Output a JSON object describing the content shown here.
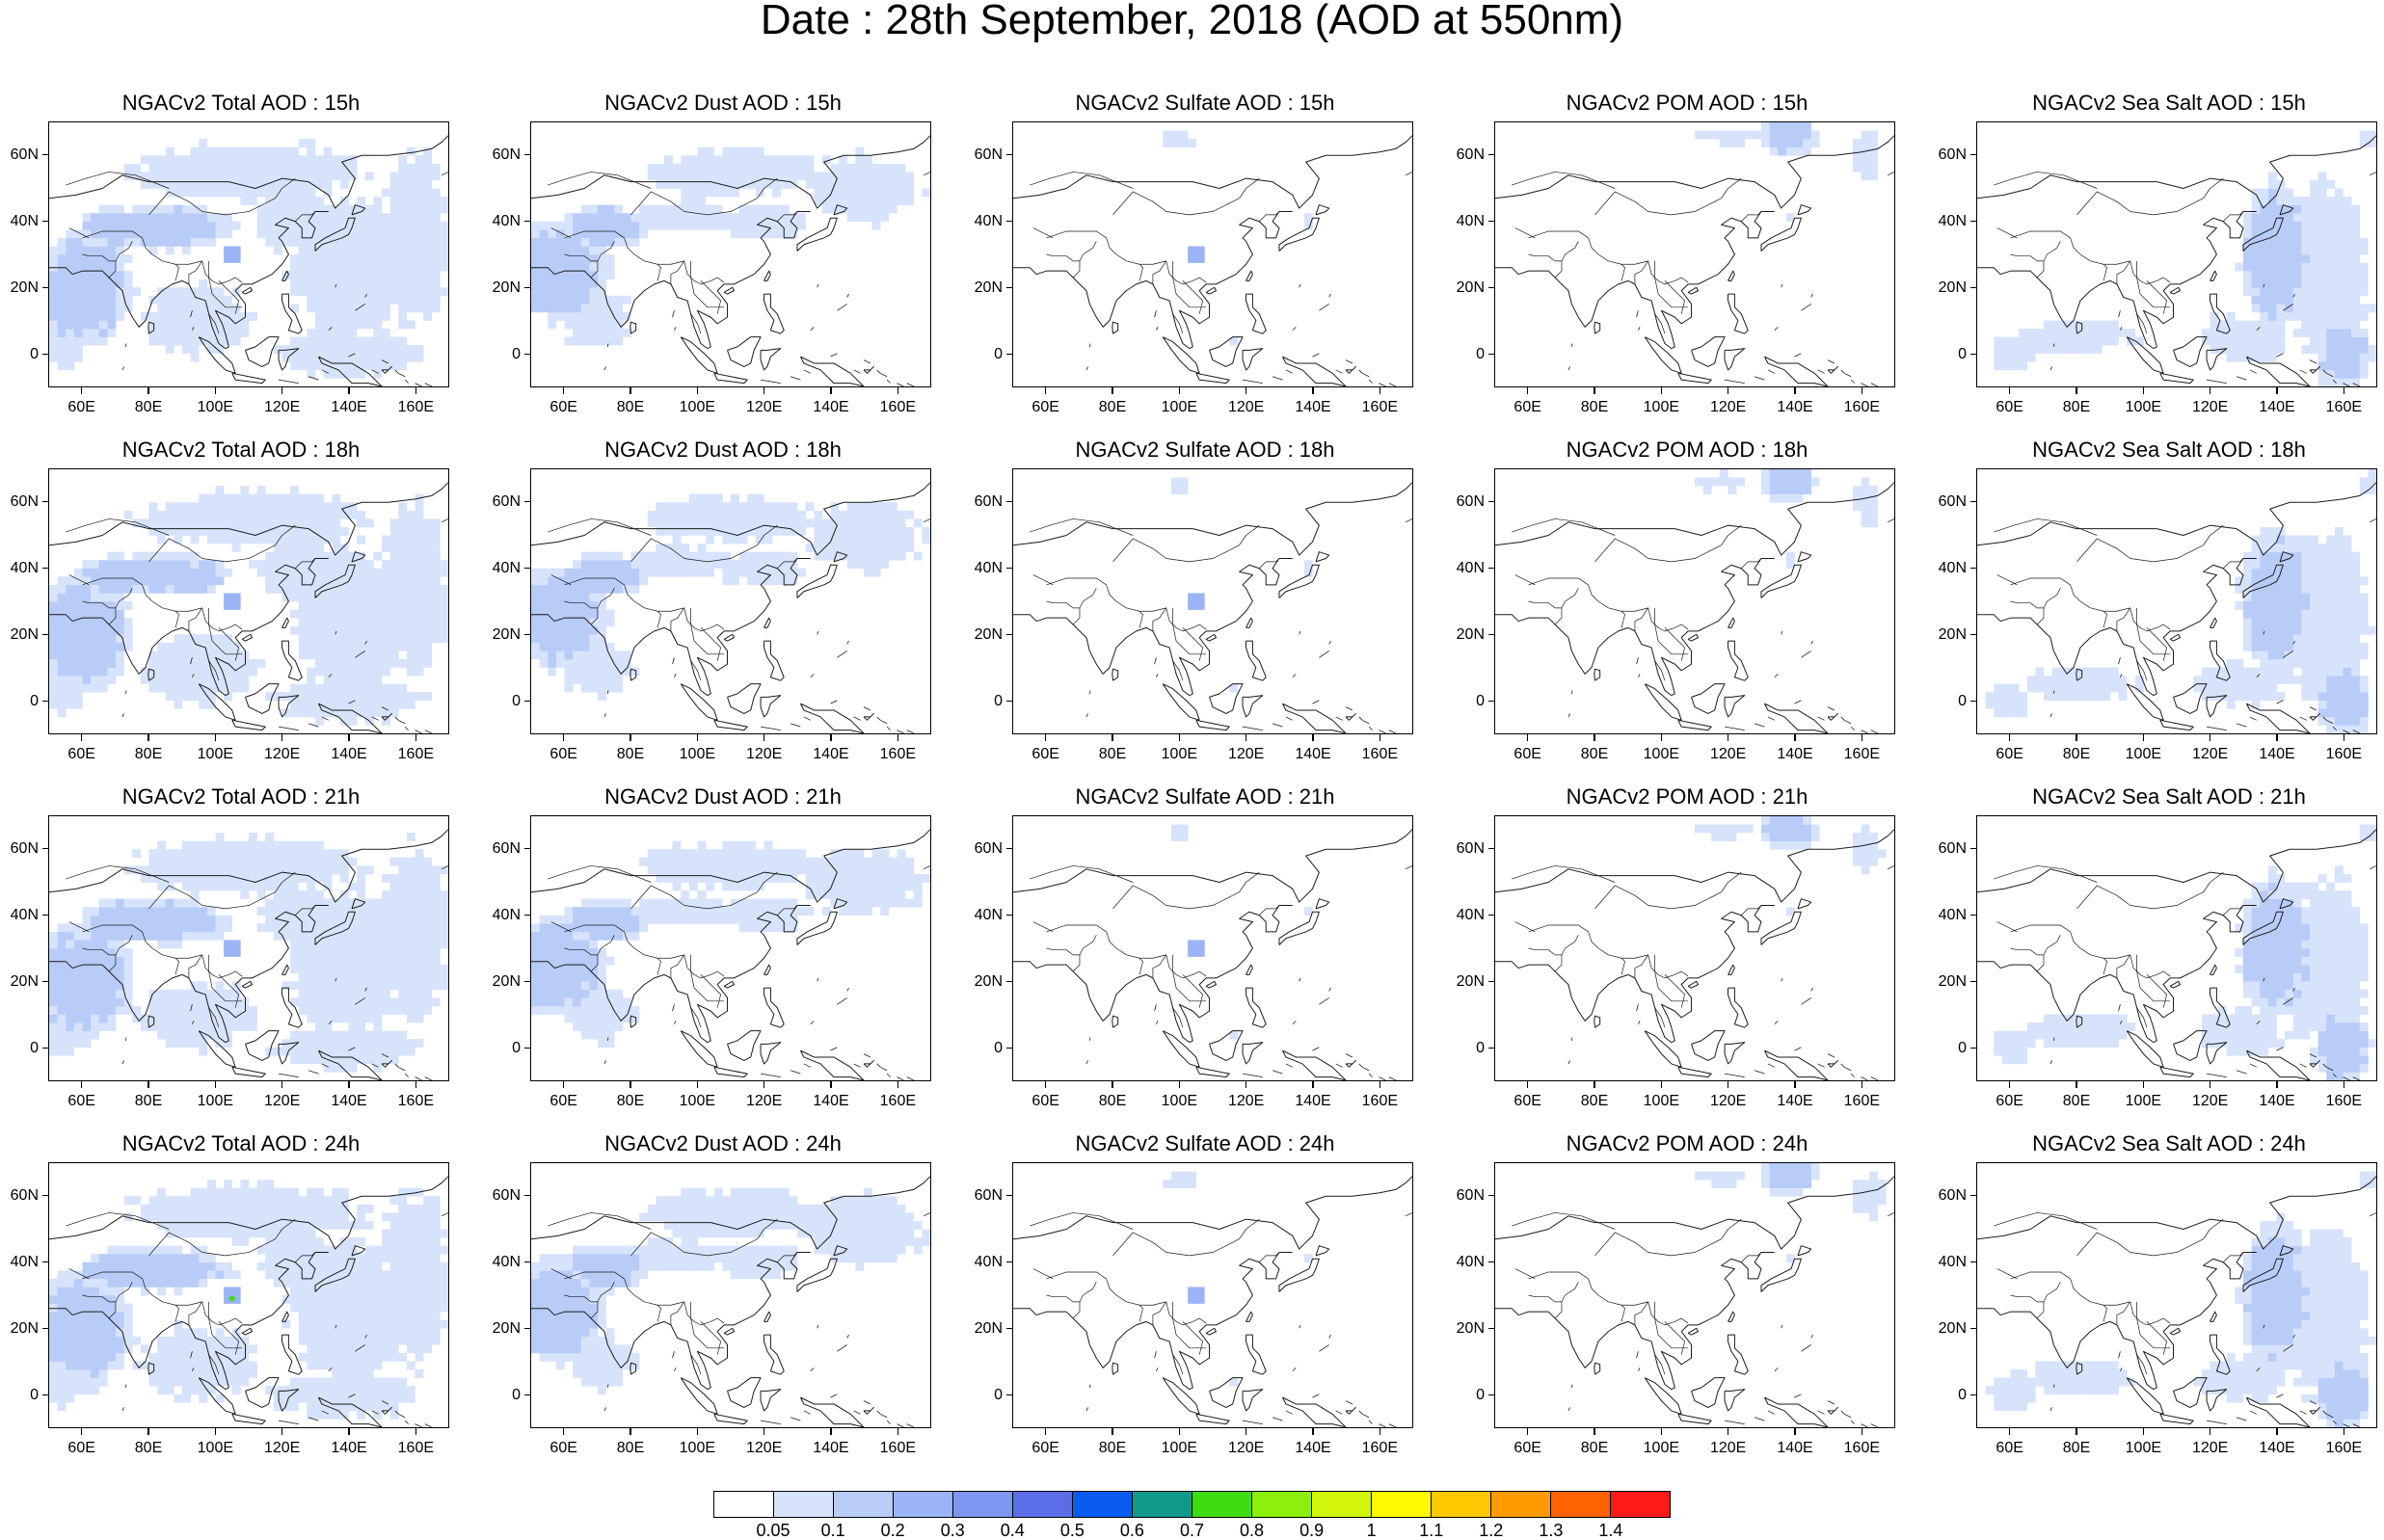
{
  "title": "Date : 28th September, 2018 (AOD at 550nm)",
  "lat_labels": [
    "60N",
    "40N",
    "20N",
    "0"
  ],
  "lon_labels": [
    "60E",
    "80E",
    "100E",
    "120E",
    "140E",
    "160E"
  ],
  "panels": [
    {
      "title": "NGACv2 Total AOD : 15h",
      "species": "total",
      "hour": "15h"
    },
    {
      "title": "NGACv2 Dust AOD : 15h",
      "species": "dust",
      "hour": "15h"
    },
    {
      "title": "NGACv2 Sulfate AOD : 15h",
      "species": "sulfate",
      "hour": "15h"
    },
    {
      "title": "NGACv2 POM AOD : 15h",
      "species": "pom",
      "hour": "15h"
    },
    {
      "title": "NGACv2 Sea Salt AOD : 15h",
      "species": "seasalt",
      "hour": "15h"
    },
    {
      "title": "NGACv2 Total AOD : 18h",
      "species": "total",
      "hour": "18h"
    },
    {
      "title": "NGACv2 Dust AOD : 18h",
      "species": "dust",
      "hour": "18h"
    },
    {
      "title": "NGACv2 Sulfate AOD : 18h",
      "species": "sulfate",
      "hour": "18h"
    },
    {
      "title": "NGACv2 POM AOD : 18h",
      "species": "pom",
      "hour": "18h"
    },
    {
      "title": "NGACv2 Sea Salt AOD : 18h",
      "species": "seasalt",
      "hour": "18h"
    },
    {
      "title": "NGACv2 Total AOD : 21h",
      "species": "total",
      "hour": "21h"
    },
    {
      "title": "NGACv2 Dust AOD : 21h",
      "species": "dust",
      "hour": "21h"
    },
    {
      "title": "NGACv2 Sulfate AOD : 21h",
      "species": "sulfate",
      "hour": "21h"
    },
    {
      "title": "NGACv2 POM AOD : 21h",
      "species": "pom",
      "hour": "21h"
    },
    {
      "title": "NGACv2 Sea Salt AOD : 21h",
      "species": "seasalt",
      "hour": "21h"
    },
    {
      "title": "NGACv2 Total AOD : 24h",
      "species": "total",
      "hour": "24h"
    },
    {
      "title": "NGACv2 Dust AOD : 24h",
      "species": "dust",
      "hour": "24h"
    },
    {
      "title": "NGACv2 Sulfate AOD : 24h",
      "species": "sulfate",
      "hour": "24h"
    },
    {
      "title": "NGACv2 POM AOD : 24h",
      "species": "pom",
      "hour": "24h"
    },
    {
      "title": "NGACv2 Sea Salt  AOD : 24h",
      "species": "seasalt",
      "hour": "24h"
    }
  ],
  "colorbar": {
    "labels": [
      "0.05",
      "0.1",
      "0.2",
      "0.3",
      "0.4",
      "0.5",
      "0.6",
      "0.7",
      "0.8",
      "0.9",
      "1",
      "1.1",
      "1.2",
      "1.3",
      "1.4"
    ],
    "colors": [
      "#ffffff",
      "#d7e3fb",
      "#b8ccf8",
      "#9ab4f5",
      "#7d97f0",
      "#5b6ee8",
      "#0a5cf0",
      "#0f9a8c",
      "#3fdc12",
      "#8cf00c",
      "#d2f50a",
      "#fffa00",
      "#ffc800",
      "#ff9a00",
      "#ff6200",
      "#ff1a1a"
    ]
  },
  "colors": {
    "fill_light": "#d7e3fb",
    "fill_medium": "#b8ccf8",
    "fill_strong": "#9ab4f5",
    "fill_peak": "#7d97f0",
    "coast": "#1a1a1a"
  }
}
